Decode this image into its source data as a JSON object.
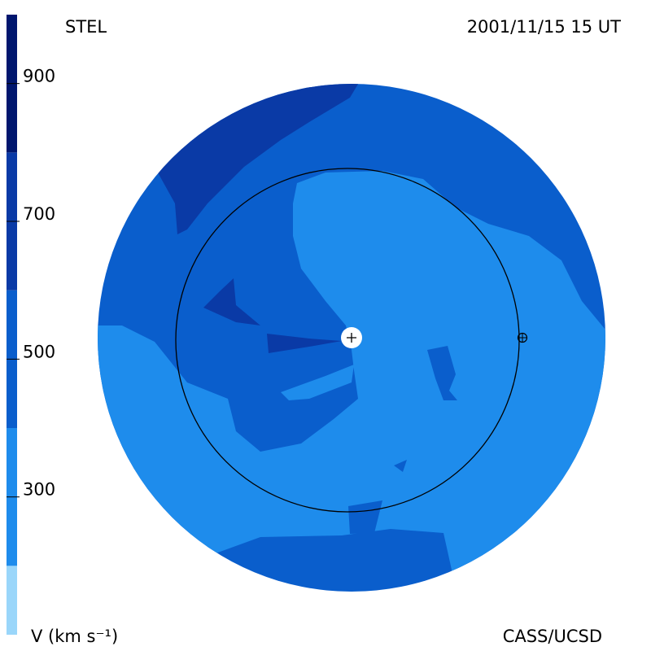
{
  "chart_data": {
    "type": "contour",
    "title": "STEL",
    "subtitle": "2001/11/15 15 UT",
    "credit": "CASS/UCSD",
    "colorbar_label": "V (km s⁻¹)",
    "colorbar": {
      "lim": [
        100,
        1000
      ],
      "levels": [
        100,
        200,
        400,
        600,
        800,
        1000
      ],
      "colors": [
        "#9ad6fa",
        "#1e8cec",
        "#0a5ecc",
        "#0a3aa6",
        "#00166e"
      ],
      "ticks": [
        300,
        500,
        700,
        900
      ]
    }
  }
}
